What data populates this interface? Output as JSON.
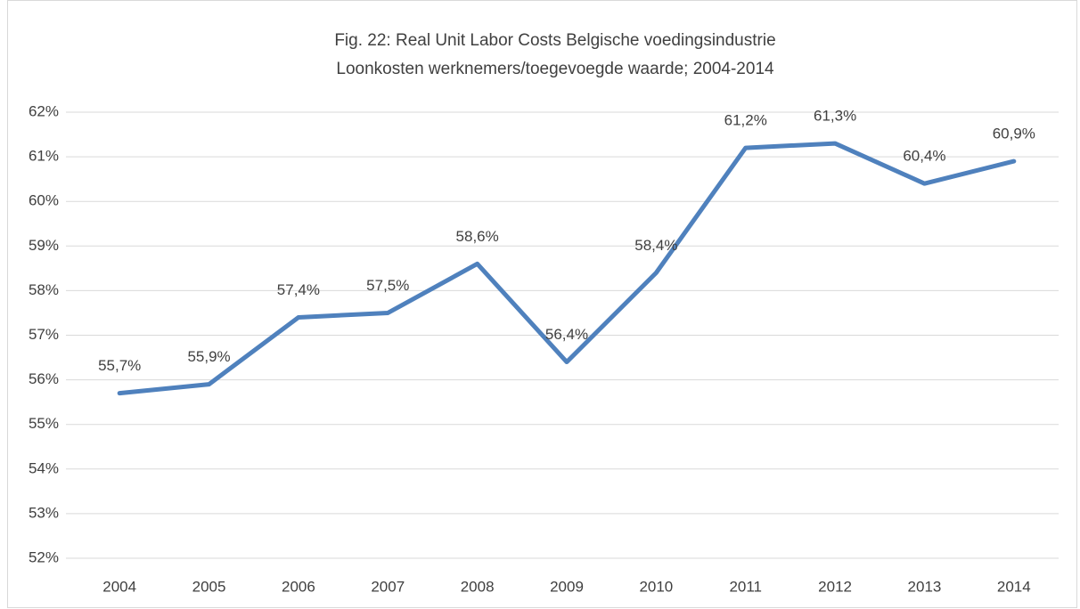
{
  "chart_data": {
    "type": "line",
    "title": "Fig. 22: Real Unit Labor Costs Belgische voedingsindustrie",
    "subtitle": "Loonkosten werknemers/toegevoegde waarde; 2004-2014",
    "categories": [
      "2004",
      "2005",
      "2006",
      "2007",
      "2008",
      "2009",
      "2010",
      "2011",
      "2012",
      "2013",
      "2014"
    ],
    "series": [
      {
        "name": "Real Unit Labor Costs",
        "color": "#4f81bd",
        "values": [
          55.7,
          55.9,
          57.4,
          57.5,
          58.6,
          56.4,
          58.4,
          61.2,
          61.3,
          60.4,
          60.9
        ],
        "value_labels": [
          "55,7%",
          "55,9%",
          "57,4%",
          "57,5%",
          "58,6%",
          "56,4%",
          "58,4%",
          "61,2%",
          "61,3%",
          "60,4%",
          "60,9%"
        ]
      }
    ],
    "ylim": [
      52,
      62
    ],
    "yticks": [
      {
        "value": 52,
        "label": "52%"
      },
      {
        "value": 53,
        "label": "53%"
      },
      {
        "value": 54,
        "label": "54%"
      },
      {
        "value": 55,
        "label": "55%"
      },
      {
        "value": 56,
        "label": "56%"
      },
      {
        "value": 57,
        "label": "57%"
      },
      {
        "value": 58,
        "label": "58%"
      },
      {
        "value": 59,
        "label": "59%"
      },
      {
        "value": 60,
        "label": "60%"
      },
      {
        "value": 61,
        "label": "61%"
      },
      {
        "value": 62,
        "label": "62%"
      }
    ],
    "grid": true
  }
}
